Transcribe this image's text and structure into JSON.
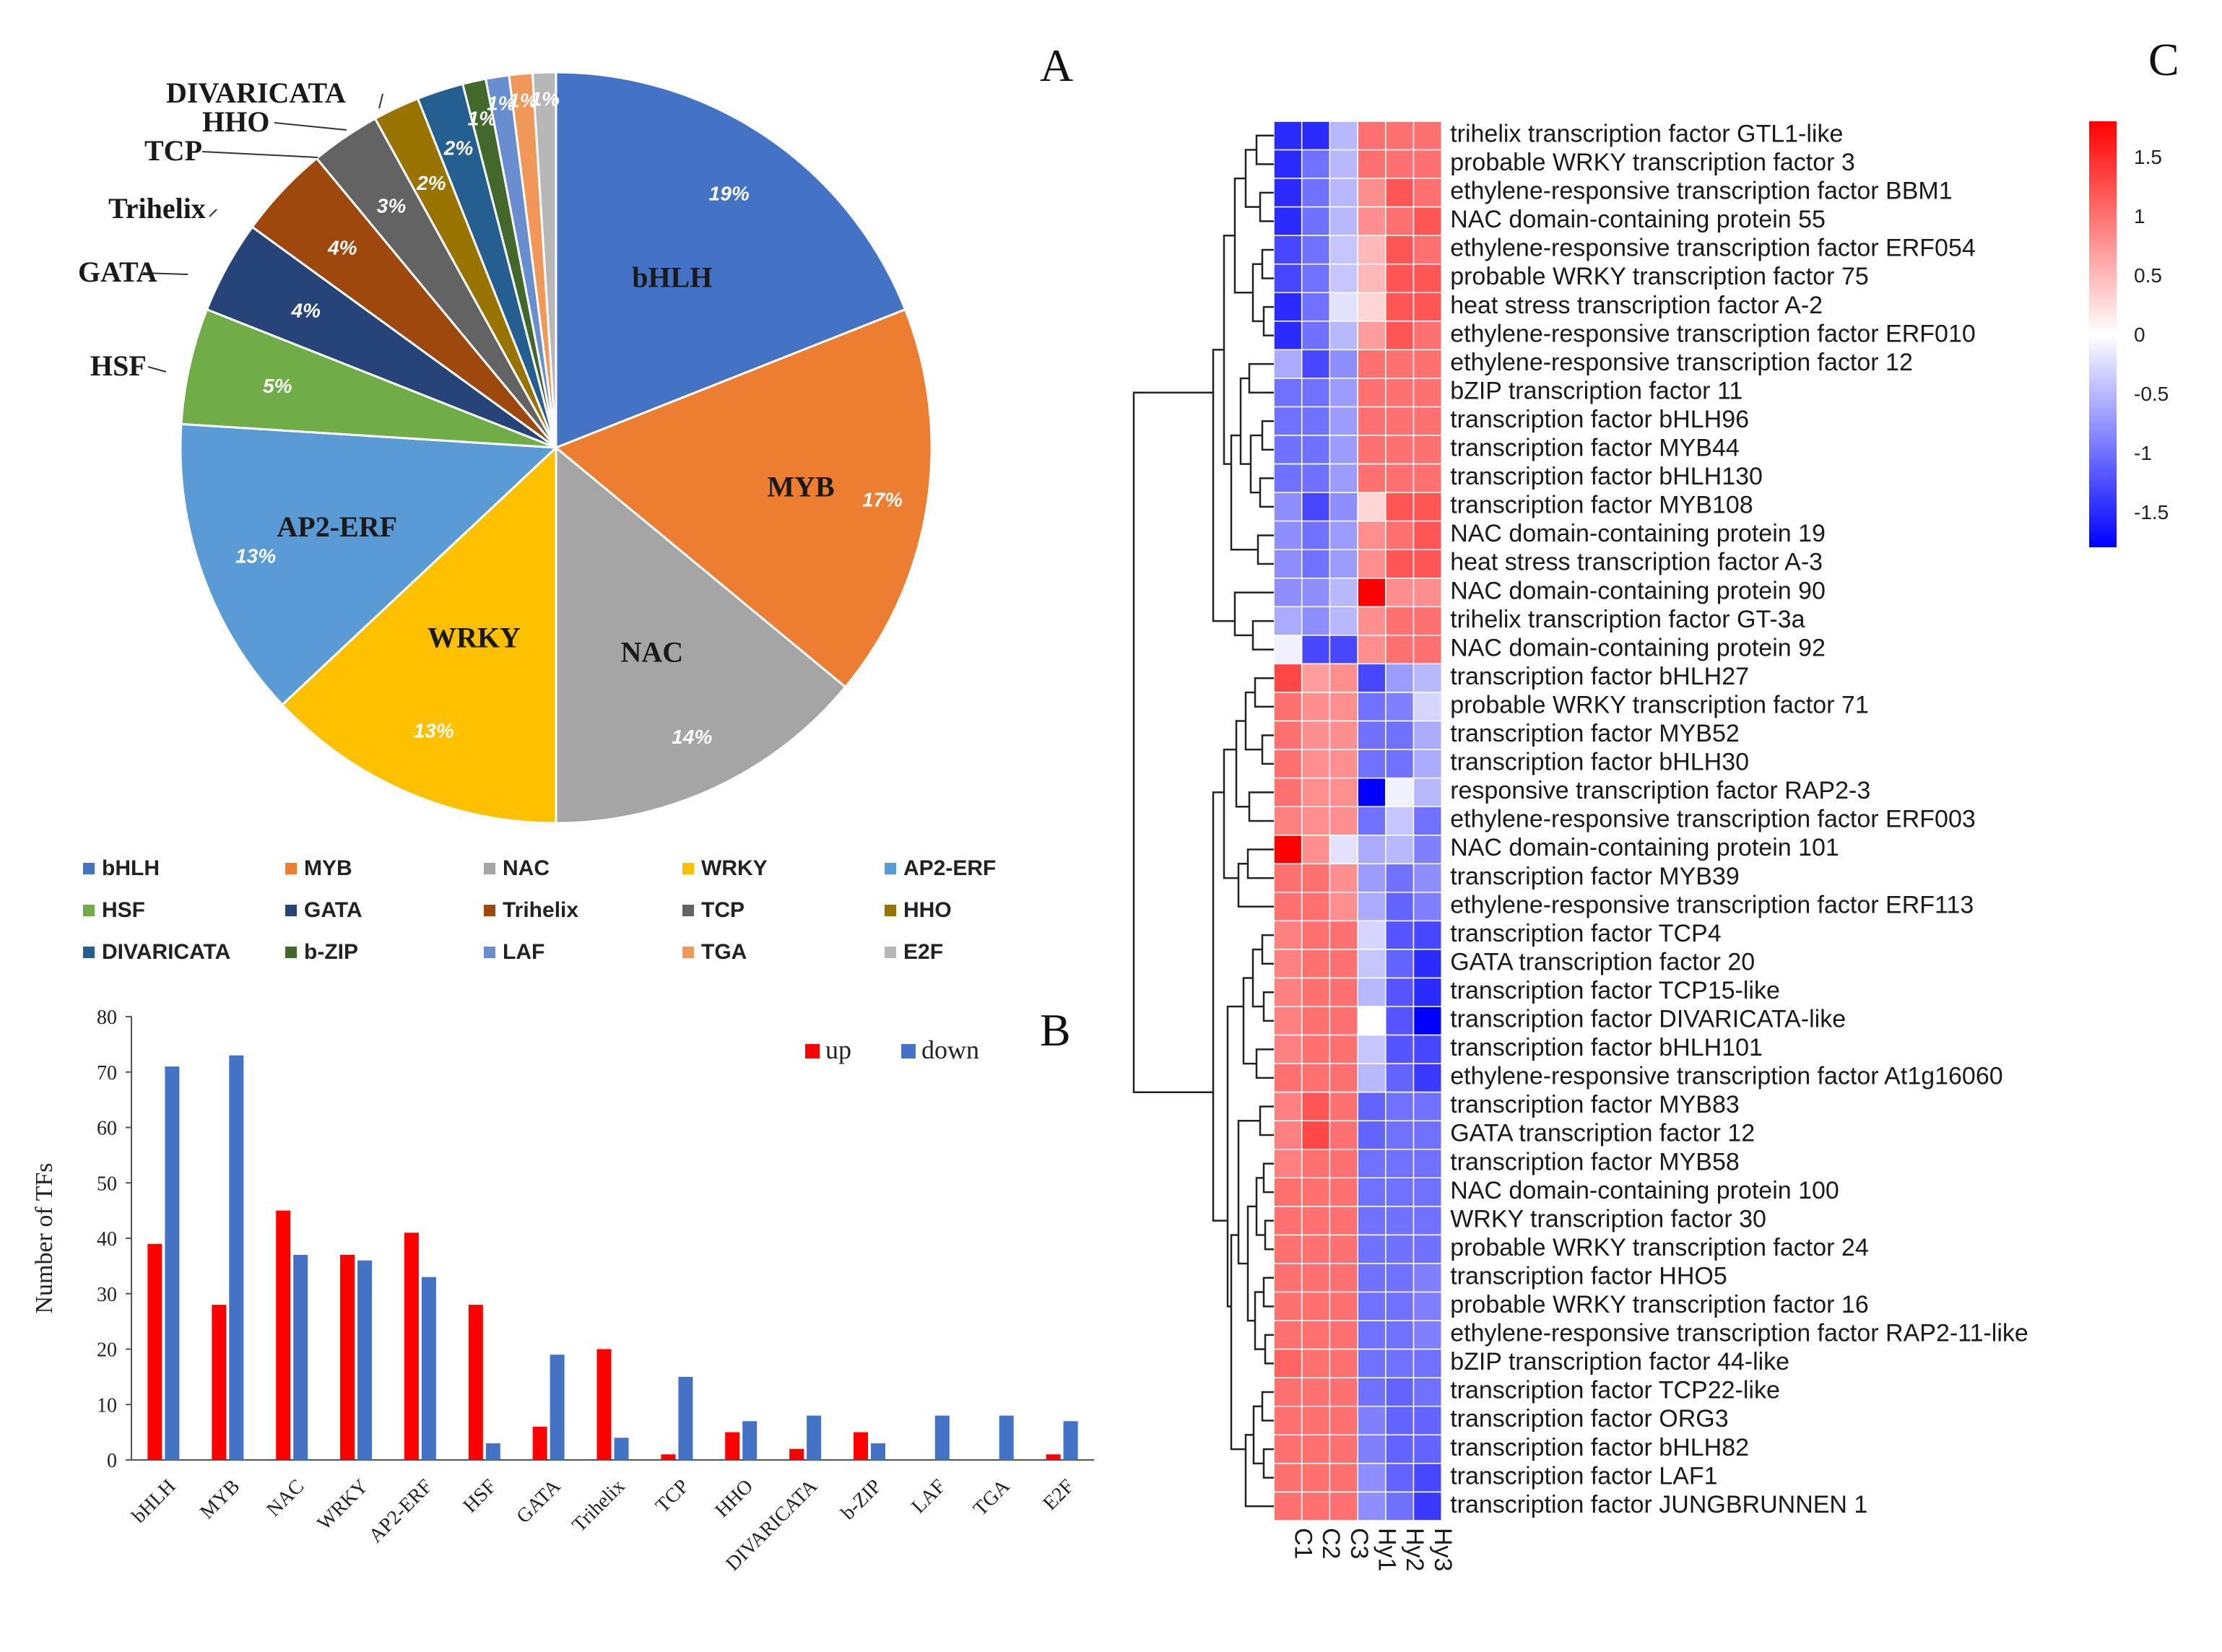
{
  "panels": {
    "a": "A",
    "b": "B",
    "c": "C"
  },
  "colors": {
    "bHLH": "#4472c4",
    "MYB": "#ed7d31",
    "NAC": "#a5a5a5",
    "WRKY": "#ffc000",
    "AP2-ERF": "#5b9bd5",
    "HSF": "#70ad47",
    "GATA": "#264478",
    "Trihelix": "#9e480e",
    "TCP": "#636363",
    "HHO": "#997300",
    "DIVARICATA": "#255e91",
    "b-ZIP": "#43682b",
    "LAF": "#698ed0",
    "TGA": "#f1975a",
    "E2F": "#b7b7b7",
    "up": "#ff0000",
    "down": "#4472c4",
    "heat_high": "#ff0000",
    "heat_mid": "#ffffff",
    "heat_low": "#0000ff"
  },
  "chart_data": [
    {
      "type": "pie",
      "panel": "A",
      "title": "",
      "categories": [
        "bHLH",
        "MYB",
        "NAC",
        "WRKY",
        "AP2-ERF",
        "HSF",
        "GATA",
        "Trihelix",
        "TCP",
        "HHO",
        "DIVARICATA",
        "b-ZIP",
        "LAF",
        "TGA",
        "E2F"
      ],
      "values": [
        19,
        17,
        14,
        13,
        13,
        5,
        4,
        4,
        3,
        2,
        2,
        1,
        1,
        1,
        1
      ],
      "pct_labels": [
        "19%",
        "17%",
        "14%",
        "13%",
        "13%",
        "5%",
        "4%",
        "4%",
        "3%",
        "2%",
        "2%",
        "1%",
        "1%",
        "1%",
        "1%"
      ],
      "slice_labels": [
        "bHLH",
        "MYB",
        "NAC",
        "WRKY",
        "AP2-ERF",
        "HSF",
        "GATA",
        "Trihelix",
        "TCP",
        "HHO",
        "DIVARICATA",
        "",
        "",
        "",
        ""
      ],
      "legend": [
        "bHLH",
        "MYB",
        "NAC",
        "WRKY",
        "AP2-ERF",
        "HSF",
        "GATA",
        "Trihelix",
        "TCP",
        "HHO",
        "DIVARICATA",
        "b-ZIP",
        "LAF",
        "TGA",
        "E2F"
      ]
    },
    {
      "type": "bar",
      "panel": "B",
      "categories": [
        "bHLH",
        "MYB",
        "NAC",
        "WRKY",
        "AP2-ERF",
        "HSF",
        "GATA",
        "Trihelix",
        "TCP",
        "HHO",
        "DIVARICATA",
        "b-ZIP",
        "LAF",
        "TGA",
        "E2F"
      ],
      "series": [
        {
          "name": "up",
          "values": [
            39,
            28,
            45,
            37,
            41,
            28,
            6,
            20,
            1,
            5,
            2,
            5,
            0,
            0,
            1
          ]
        },
        {
          "name": "down",
          "values": [
            71,
            73,
            37,
            36,
            33,
            3,
            19,
            4,
            15,
            7,
            8,
            3,
            8,
            8,
            7
          ]
        }
      ],
      "xlabel": "",
      "ylabel": "Number of TFs",
      "ylim": [
        0,
        80
      ],
      "yticks": [
        "0",
        "10",
        "20",
        "30",
        "40",
        "50",
        "60",
        "70",
        "80"
      ],
      "legend_position": "top-right"
    },
    {
      "type": "heatmap",
      "panel": "C",
      "columns": [
        "C1",
        "C2",
        "C3",
        "Hy1",
        "Hy2",
        "Hy3"
      ],
      "rows": [
        "trihelix transcription factor GTL1-like",
        "probable WRKY transcription factor 3",
        "ethylene-responsive transcription factor BBM1",
        "NAC domain-containing protein 55",
        "ethylene-responsive transcription factor ERF054",
        "probable WRKY transcription factor 75",
        "heat stress transcription factor A-2",
        "ethylene-responsive transcription factor ERF010",
        "ethylene-responsive transcription factor 12",
        "bZIP transcription factor 11",
        "transcription factor bHLH96",
        "transcription factor MYB44",
        "transcription factor bHLH130",
        "transcription factor MYB108",
        "NAC domain-containing protein 19",
        "heat stress transcription factor A-3",
        "NAC domain-containing protein 90",
        "trihelix transcription factor GT-3a",
        "NAC domain-containing protein 92",
        "transcription factor bHLH27",
        "probable WRKY transcription factor 71",
        "transcription factor MYB52",
        "transcription factor bHLH30",
        "responsive transcription factor RAP2-3",
        "ethylene-responsive transcription factor ERF003",
        "NAC domain-containing protein 101",
        "transcription factor MYB39",
        "ethylene-responsive transcription factor ERF113",
        "transcription factor TCP4",
        "GATA transcription factor 20",
        "transcription factor TCP15-like",
        "transcription factor DIVARICATA-like",
        "transcription factor bHLH101",
        "ethylene-responsive transcription factor At1g16060",
        "transcription factor MYB83",
        "GATA transcription factor 12",
        "transcription factor MYB58",
        "NAC domain-containing protein 100",
        "WRKY transcription factor 30",
        "probable WRKY transcription factor 24",
        "transcription factor HHO5",
        "probable WRKY transcription factor 16",
        "ethylene-responsive transcription factor RAP2-11-like",
        "bZIP transcription factor 44-like",
        "transcription factor TCP22-like",
        "transcription factor ORG3",
        "transcription factor bHLH82",
        "transcription factor LAF1",
        "transcription factor JUNGBRUNNEN 1"
      ],
      "values": [
        [
          -1.5,
          -1.5,
          -0.5,
          1.0,
          1.0,
          1.0
        ],
        [
          -1.5,
          -1.0,
          -0.5,
          1.0,
          1.0,
          1.0
        ],
        [
          -1.5,
          -1.0,
          -0.5,
          0.8,
          1.2,
          1.0
        ],
        [
          -1.5,
          -1.0,
          -0.5,
          0.8,
          1.0,
          1.2
        ],
        [
          -1.3,
          -1.0,
          -0.4,
          0.5,
          1.2,
          1.0
        ],
        [
          -1.3,
          -1.0,
          -0.4,
          0.5,
          1.2,
          1.2
        ],
        [
          -1.5,
          -1.0,
          -0.2,
          0.3,
          1.2,
          1.2
        ],
        [
          -1.5,
          -1.0,
          -0.5,
          0.7,
          1.2,
          1.0
        ],
        [
          -0.6,
          -1.3,
          -0.8,
          1.0,
          1.0,
          1.0
        ],
        [
          -1.0,
          -1.0,
          -0.7,
          1.0,
          1.0,
          1.0
        ],
        [
          -1.0,
          -1.0,
          -0.7,
          1.0,
          1.0,
          1.0
        ],
        [
          -1.0,
          -1.0,
          -0.7,
          1.0,
          1.0,
          1.0
        ],
        [
          -1.0,
          -1.0,
          -0.7,
          1.0,
          1.0,
          1.0
        ],
        [
          -0.8,
          -1.3,
          -0.8,
          0.3,
          1.2,
          1.2
        ],
        [
          -0.8,
          -1.0,
          -0.7,
          0.8,
          1.0,
          1.2
        ],
        [
          -0.8,
          -1.0,
          -0.7,
          0.8,
          1.2,
          1.2
        ],
        [
          -0.8,
          -0.8,
          -0.5,
          1.8,
          0.8,
          0.8
        ],
        [
          -0.6,
          -0.8,
          -0.5,
          0.8,
          1.0,
          1.0
        ],
        [
          -0.1,
          -1.3,
          -1.3,
          0.8,
          1.0,
          1.0
        ],
        [
          1.3,
          0.7,
          0.8,
          -1.3,
          -0.7,
          -0.5
        ],
        [
          1.0,
          0.8,
          0.8,
          -1.0,
          -0.9,
          -0.3
        ],
        [
          1.0,
          0.8,
          0.8,
          -1.0,
          -1.0,
          -0.6
        ],
        [
          1.0,
          0.8,
          0.8,
          -1.0,
          -1.0,
          -0.6
        ],
        [
          1.0,
          0.8,
          0.8,
          -1.8,
          -0.1,
          -0.5
        ],
        [
          0.9,
          0.8,
          0.8,
          -1.0,
          -0.4,
          -1.0
        ],
        [
          1.8,
          0.8,
          -0.2,
          -0.6,
          -0.5,
          -0.9
        ],
        [
          1.0,
          1.0,
          0.8,
          -0.7,
          -1.0,
          -0.8
        ],
        [
          1.0,
          1.0,
          0.8,
          -0.6,
          -1.1,
          -0.9
        ],
        [
          0.9,
          1.0,
          1.0,
          -0.3,
          -1.2,
          -1.3
        ],
        [
          0.9,
          1.0,
          1.0,
          -0.4,
          -1.1,
          -1.5
        ],
        [
          0.9,
          1.0,
          1.0,
          -0.5,
          -1.2,
          -1.5
        ],
        [
          0.9,
          1.0,
          1.0,
          0.0,
          -1.2,
          -1.8
        ],
        [
          0.9,
          1.0,
          1.0,
          -0.4,
          -1.2,
          -1.3
        ],
        [
          1.0,
          1.0,
          1.0,
          -0.5,
          -1.1,
          -1.4
        ],
        [
          0.9,
          1.2,
          1.0,
          -1.1,
          -1.0,
          -1.0
        ],
        [
          0.9,
          1.3,
          1.0,
          -1.1,
          -1.0,
          -1.0
        ],
        [
          0.9,
          1.0,
          1.0,
          -1.0,
          -1.0,
          -1.0
        ],
        [
          1.0,
          1.0,
          1.0,
          -1.0,
          -1.0,
          -1.0
        ],
        [
          1.0,
          1.0,
          1.0,
          -1.0,
          -1.0,
          -1.0
        ],
        [
          1.0,
          1.0,
          1.0,
          -1.0,
          -1.0,
          -1.0
        ],
        [
          1.0,
          1.0,
          1.0,
          -1.0,
          -1.0,
          -0.9
        ],
        [
          1.0,
          1.0,
          1.0,
          -1.0,
          -1.0,
          -0.9
        ],
        [
          1.0,
          1.0,
          1.0,
          -1.0,
          -1.0,
          -0.9
        ],
        [
          1.1,
          1.0,
          1.0,
          -1.0,
          -1.0,
          -1.0
        ],
        [
          1.0,
          1.0,
          1.0,
          -1.0,
          -1.1,
          -1.0
        ],
        [
          1.0,
          1.0,
          1.0,
          -0.9,
          -1.1,
          -1.1
        ],
        [
          1.0,
          1.0,
          1.0,
          -0.9,
          -1.1,
          -1.1
        ],
        [
          1.0,
          1.0,
          1.0,
          -0.8,
          -1.1,
          -1.3
        ],
        [
          1.0,
          1.0,
          1.0,
          -0.8,
          -1.0,
          -1.4
        ]
      ],
      "colorbar_ticks": [
        "1.5",
        "1",
        "0.5",
        "0",
        "-0.5",
        "-1",
        "-1.5"
      ],
      "colorbar_values": [
        1.5,
        1,
        0.5,
        0,
        -0.5,
        -1,
        -1.5
      ],
      "color_range": [
        -1.8,
        1.8
      ]
    }
  ]
}
